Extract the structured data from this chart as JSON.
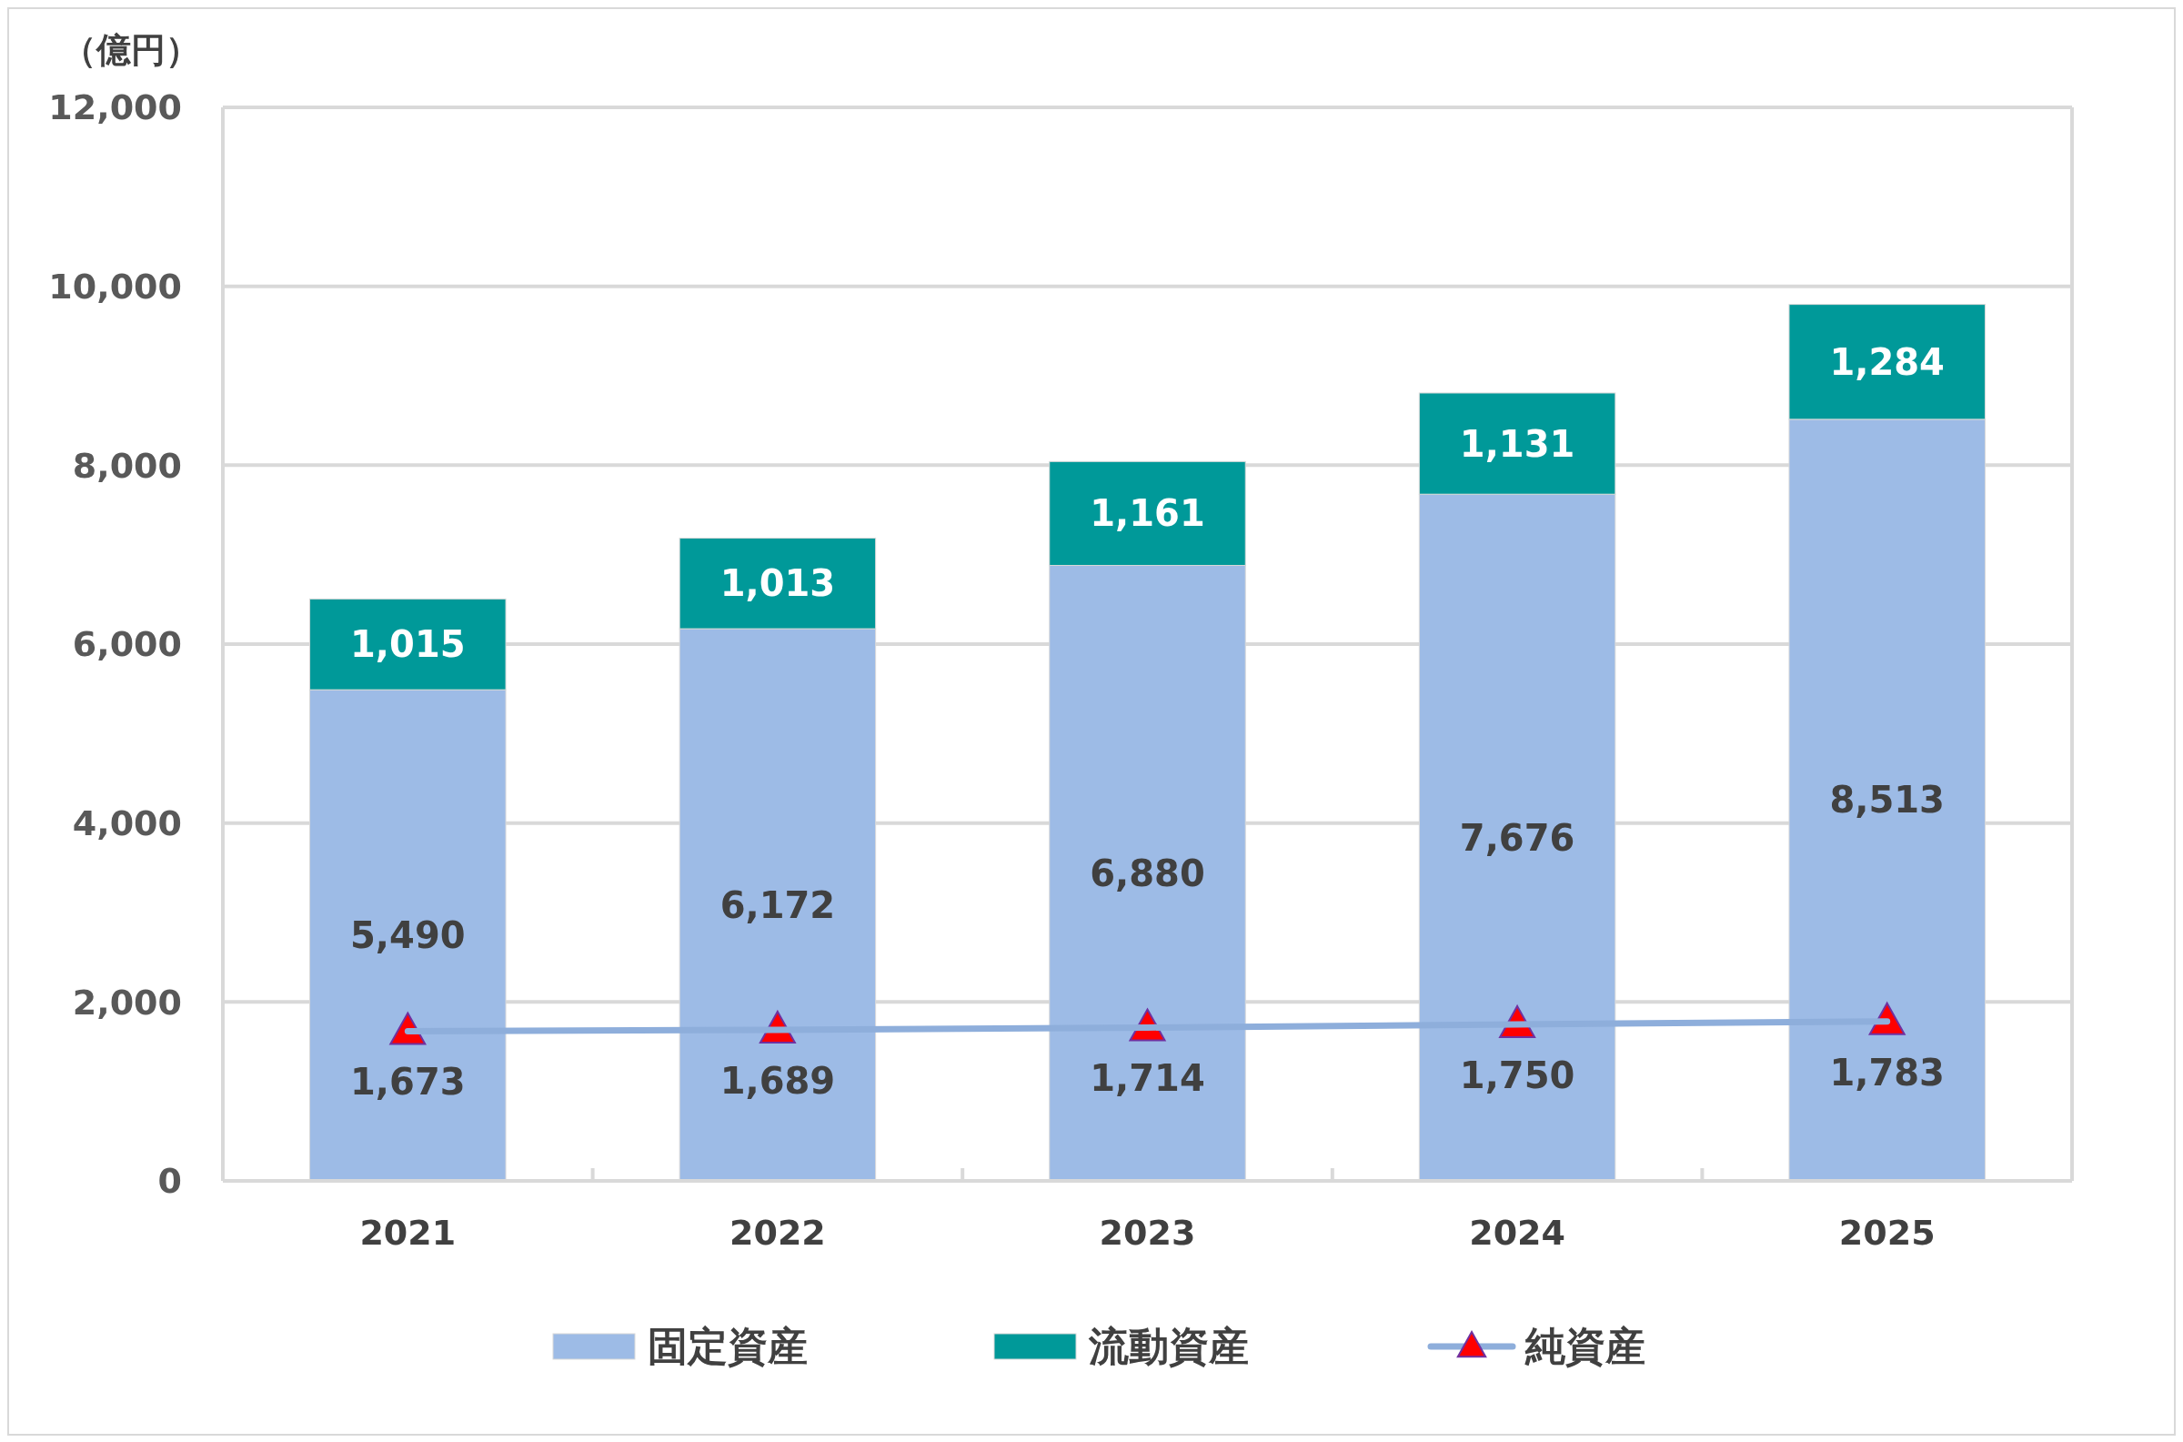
{
  "chart_data": {
    "type": "bar",
    "ylabel": "（億円）",
    "categories": [
      "2021",
      "2022",
      "2023",
      "2024",
      "2025"
    ],
    "stacked": true,
    "series": [
      {
        "name": "固定資産",
        "color": "#9dbbe6",
        "values": [
          5490,
          6172,
          6880,
          7676,
          8513
        ],
        "value_labels": [
          "5,490",
          "6,172",
          "6,880",
          "7,676",
          "8,513"
        ]
      },
      {
        "name": "流動資産",
        "color": "#009999",
        "values": [
          1015,
          1013,
          1161,
          1131,
          1284
        ],
        "value_labels": [
          "1,015",
          "1,013",
          "1,161",
          "1,131",
          "1,284"
        ]
      },
      {
        "name": "純資産",
        "type": "line",
        "color": "#8eaedb",
        "marker": "triangle",
        "values": [
          1673,
          1689,
          1714,
          1750,
          1783
        ],
        "value_labels": [
          "1,673",
          "1,689",
          "1,714",
          "1,750",
          "1,783"
        ]
      }
    ],
    "ylim": [
      0,
      12000
    ],
    "yticks": [
      {
        "value": 0,
        "label": "0"
      },
      {
        "value": 2000,
        "label": "2,000"
      },
      {
        "value": 4000,
        "label": "4,000"
      },
      {
        "value": 6000,
        "label": "6,000"
      },
      {
        "value": 8000,
        "label": "8,000"
      },
      {
        "value": 10000,
        "label": "10,000"
      },
      {
        "value": 12000,
        "label": "12,000"
      }
    ],
    "grid": "y",
    "legend": "bottom"
  }
}
